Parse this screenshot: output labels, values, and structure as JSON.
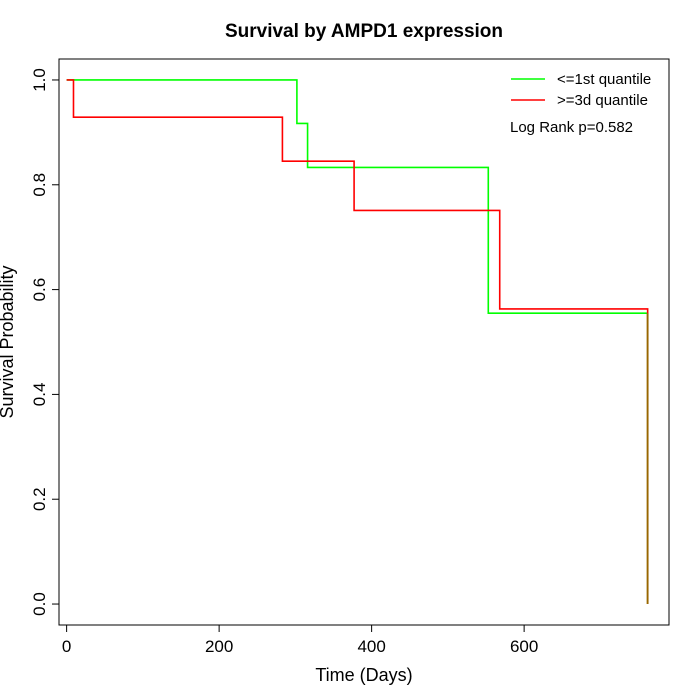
{
  "chart_data": {
    "type": "line",
    "title": "Survival by AMPD1 expression",
    "xlabel": "Time (Days)",
    "ylabel": "Survival Probability",
    "xlim": [
      -10,
      790
    ],
    "ylim": [
      -0.04,
      1.04
    ],
    "x_ticks": [
      0,
      200,
      400,
      600
    ],
    "y_ticks": [
      0.0,
      0.2,
      0.4,
      0.6,
      0.8,
      1.0
    ],
    "y_tick_labels": [
      "0.0",
      "0.2",
      "0.4",
      "0.6",
      "0.8",
      "1.0"
    ],
    "grid": false,
    "legend_position": "top-right",
    "annotation": "Log Rank p=0.582",
    "series": [
      {
        "name": "<=1st quantile",
        "color": "#00ff00",
        "step": true,
        "x": [
          0,
          302,
          316,
          553,
          762,
          762
        ],
        "y": [
          1.0,
          0.917,
          0.833,
          0.555,
          0.555,
          0.0
        ]
      },
      {
        "name": ">=3d quantile",
        "color": "#ff0000",
        "step": true,
        "x": [
          0,
          9,
          283,
          377,
          568,
          762,
          762
        ],
        "y": [
          1.0,
          0.929,
          0.845,
          0.751,
          0.563,
          0.563,
          0.0
        ]
      }
    ],
    "overlap_color": "#996600"
  }
}
